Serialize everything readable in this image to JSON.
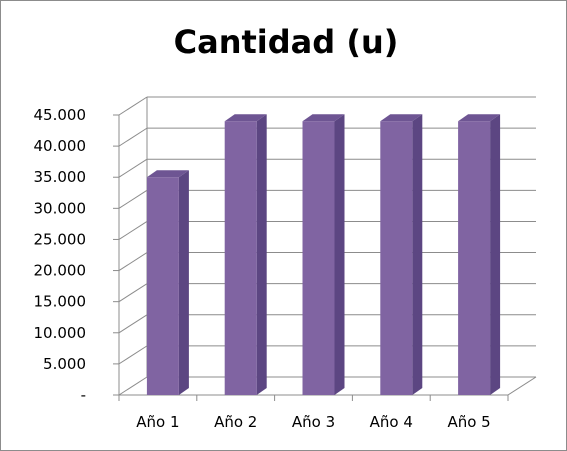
{
  "chart_data": {
    "type": "bar",
    "title": "Cantidad (u)",
    "categories": [
      "Año 1",
      "Año 2",
      "Año 3",
      "Año 4",
      "Año 5"
    ],
    "values": [
      35000,
      44000,
      44000,
      44000,
      44000
    ],
    "ylim": [
      0,
      45000
    ],
    "yticks": [
      "-",
      "5.000",
      "10.000",
      "15.000",
      "20.000",
      "25.000",
      "30.000",
      "35.000",
      "40.000",
      "45.000"
    ],
    "grid": true,
    "legend": "none",
    "style": "3d-columns",
    "colors": {
      "bar_front": "#8064A2",
      "bar_side": "#5C4682",
      "bar_top": "#6E5593",
      "grid": "#8c8c8c"
    }
  }
}
